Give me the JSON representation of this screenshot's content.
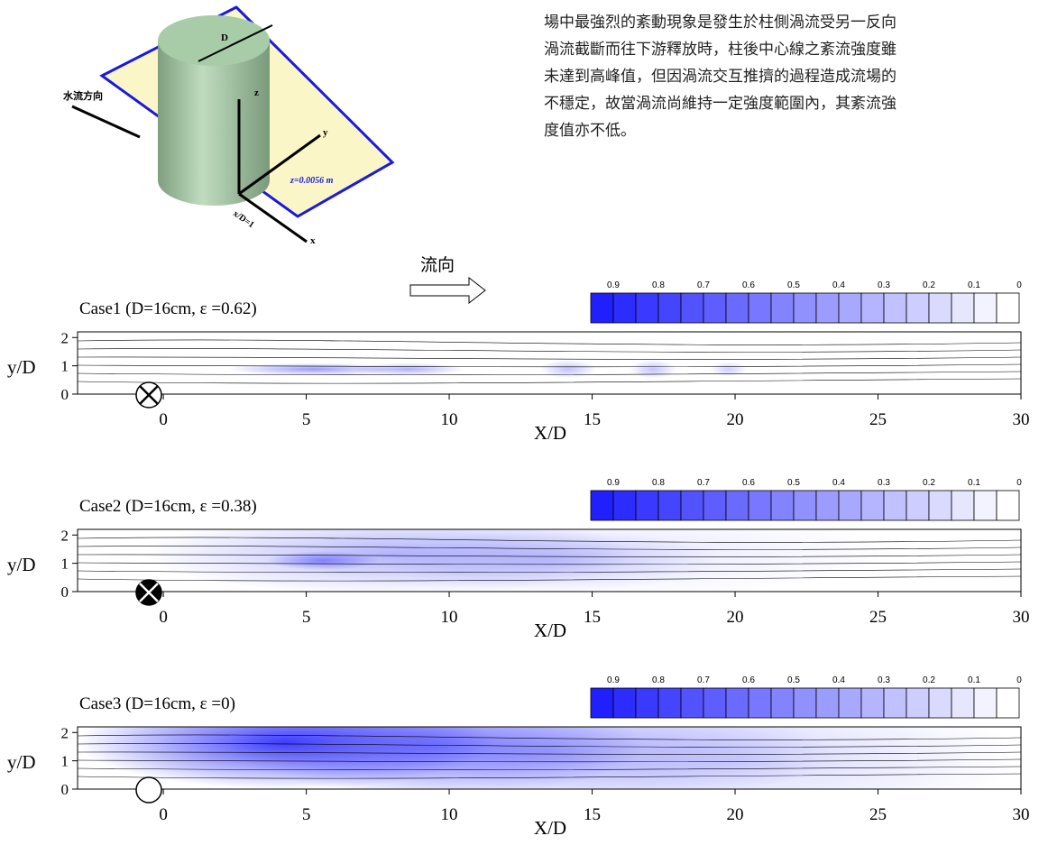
{
  "diagram": {
    "flow_label": "水流方向",
    "d_label": "D",
    "z_axis": "z",
    "y_axis": "y",
    "x_axis": "x",
    "plane_label": "z=0.0056 m",
    "section_label": "x/D=1"
  },
  "paragraph": [
    "場中最強烈的紊動現象是發生於柱側渦流受另一反向",
    "渦流截斷而往下游釋放時，柱後中心線之紊流強度雖",
    "未達到高峰值，但因渦流交互推擠的過程造成流場的",
    "不穩定，故當渦流尚維持一定強度範圍內，其紊流強",
    "度值亦不低。"
  ],
  "flow_arrow_label": "流向",
  "chart_data": [
    {
      "type": "contour",
      "title": "Case1 (D=16cm, ε =0.62)",
      "xlabel": "X/D",
      "ylabel": "y/D",
      "xlim": [
        -3,
        30
      ],
      "ylim": [
        0,
        2.2
      ],
      "xticks": [
        0,
        5,
        10,
        15,
        20,
        25,
        30
      ],
      "yticks": [
        0,
        1,
        2
      ],
      "colorbar_ticks": [
        0.9,
        0.8,
        0.7,
        0.6,
        0.5,
        0.4,
        0.3,
        0.2,
        0.1,
        0
      ]
    },
    {
      "type": "contour",
      "title": "Case2 (D=16cm, ε =0.38)",
      "xlabel": "X/D",
      "ylabel": "y/D",
      "xlim": [
        -3,
        30
      ],
      "ylim": [
        0,
        2.2
      ],
      "xticks": [
        0,
        5,
        10,
        15,
        20,
        25,
        30
      ],
      "yticks": [
        0,
        1,
        2
      ],
      "colorbar_ticks": [
        0.9,
        0.8,
        0.7,
        0.6,
        0.5,
        0.4,
        0.3,
        0.2,
        0.1,
        0
      ]
    },
    {
      "type": "contour",
      "title": "Case3 (D=16cm, ε =0)",
      "xlabel": "X/D",
      "ylabel": "y/D",
      "xlim": [
        -3,
        30
      ],
      "ylim": [
        0,
        2.2
      ],
      "xticks": [
        0,
        5,
        10,
        15,
        20,
        25,
        30
      ],
      "yticks": [
        0,
        1,
        2
      ],
      "colorbar_ticks": [
        0.9,
        0.8,
        0.7,
        0.6,
        0.5,
        0.4,
        0.3,
        0.2,
        0.1,
        0
      ]
    }
  ]
}
